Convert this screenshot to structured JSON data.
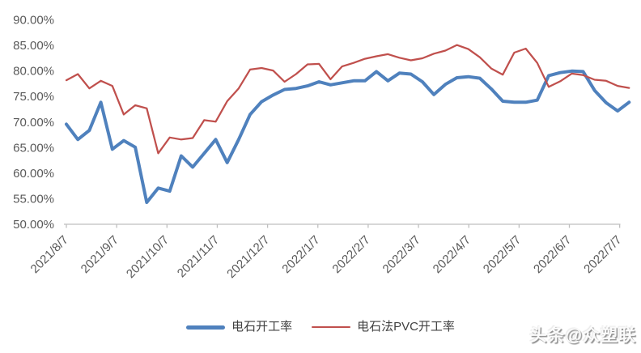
{
  "chart_data": {
    "type": "line",
    "title": "",
    "xlabel": "",
    "ylabel": "",
    "ylim": [
      50,
      90
    ],
    "y_step": 5,
    "grid": false,
    "legend_position": "bottom",
    "y_tick_labels": [
      "90.00%",
      "85.00%",
      "80.00%",
      "75.00%",
      "70.00%",
      "65.00%",
      "60.00%",
      "55.00%",
      "50.00%"
    ],
    "x_tick_labels": [
      "2021/8/7",
      "2021/9/7",
      "2021/10/7",
      "2021/11/7",
      "2021/12/7",
      "2022/1/7",
      "2022/2/7",
      "2022/3/7",
      "2022/4/7",
      "2022/5/7",
      "2022/6/7",
      "2022/7/7"
    ],
    "n_points": 50,
    "series": [
      {
        "name": "电石开工率",
        "color": "#4F81BD",
        "stroke_width": 4,
        "values": [
          69.5,
          66.5,
          68.3,
          73.8,
          64.6,
          66.3,
          65.0,
          54.2,
          57.0,
          56.4,
          63.3,
          61.1,
          63.8,
          66.5,
          62.0,
          66.5,
          71.4,
          73.9,
          75.2,
          76.3,
          76.5,
          77.0,
          77.8,
          77.2,
          77.6,
          78.0,
          78.0,
          79.8,
          78.0,
          79.5,
          79.3,
          77.8,
          75.3,
          77.3,
          78.6,
          78.8,
          78.5,
          76.4,
          74.0,
          73.8,
          73.8,
          74.2,
          79.0,
          79.6,
          79.9,
          79.8,
          76.1,
          73.7,
          72.1,
          73.8
        ]
      },
      {
        "name": "电石法PVC开工率",
        "color": "#C0504D",
        "stroke_width": 2.25,
        "values": [
          78.1,
          79.3,
          76.5,
          78.0,
          77.0,
          71.4,
          73.2,
          72.6,
          63.8,
          66.9,
          66.5,
          66.8,
          70.3,
          70.0,
          74.0,
          76.5,
          80.2,
          80.5,
          80.0,
          77.8,
          79.3,
          81.2,
          81.3,
          78.3,
          80.8,
          81.5,
          82.3,
          82.8,
          83.2,
          82.5,
          82.0,
          82.4,
          83.3,
          83.9,
          85.0,
          84.2,
          82.6,
          80.4,
          79.2,
          83.5,
          84.3,
          81.5,
          76.8,
          77.9,
          79.4,
          79.1,
          78.2,
          78.0,
          77.0,
          76.6
        ]
      }
    ],
    "axis_color": "#BFBFBF",
    "label_color": "#595959"
  },
  "legend": {
    "item1": "电石开工率",
    "item2": "电石法PVC开工率"
  },
  "watermark": "头条@众塑联"
}
